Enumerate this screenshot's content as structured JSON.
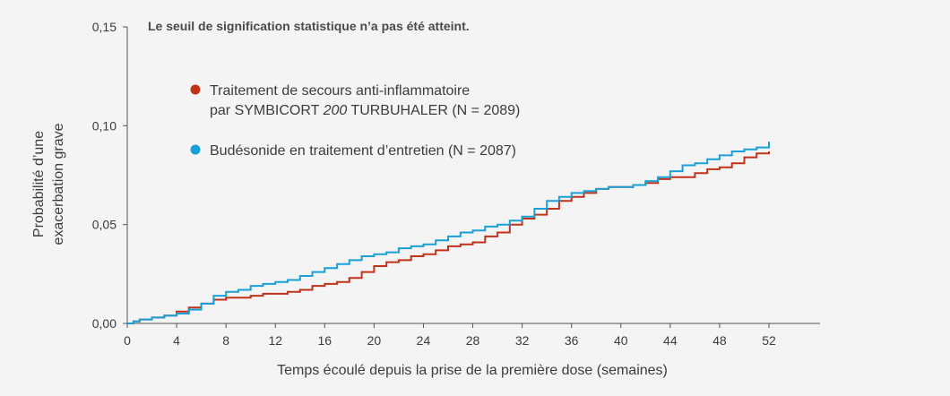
{
  "chart_data": {
    "type": "line",
    "step": true,
    "annotation": "Le seuil de signification statistique n’a pas été atteint.",
    "ylabel": [
      "Probabilité d’une",
      "exacerbation grave"
    ],
    "xlabel": "Temps écoulé depuis la prise de la première dose (semaines)",
    "xlim": [
      0,
      52
    ],
    "ylim": [
      0,
      0.15
    ],
    "xticks": [
      0,
      4,
      8,
      12,
      16,
      20,
      24,
      28,
      32,
      36,
      40,
      44,
      48,
      52
    ],
    "xtick_labels": [
      "0",
      "4",
      "8",
      "12",
      "16",
      "20",
      "24",
      "28",
      "32",
      "36",
      "40",
      "44",
      "48",
      "52"
    ],
    "yticks": [
      0,
      0.05,
      0.1,
      0.15
    ],
    "ytick_labels": [
      "0,00",
      "0,05",
      "0,10",
      "0,15"
    ],
    "grid": false,
    "legend_position": "top-left",
    "series": [
      {
        "name_lines": [
          [
            {
              "t": "Traitement de secours anti-inflammatoire",
              "i": false
            }
          ],
          [
            {
              "t": "par SYMBICORT ",
              "i": false
            },
            {
              "t": "200",
              "i": true
            },
            {
              "t": " TURBUHALER (N = 2089)",
              "i": false
            }
          ]
        ],
        "color": "#c0321a",
        "x": [
          0,
          0.5,
          1,
          2,
          3,
          4,
          5,
          6,
          7,
          8,
          9,
          10,
          11,
          12,
          13,
          14,
          15,
          16,
          17,
          18,
          19,
          20,
          21,
          22,
          23,
          24,
          25,
          26,
          27,
          28,
          29,
          30,
          31,
          32,
          33,
          34,
          35,
          36,
          37,
          38,
          39,
          40,
          41,
          42,
          43,
          44,
          45,
          46,
          47,
          48,
          49,
          50,
          51,
          52
        ],
        "y": [
          0,
          0.001,
          0.002,
          0.003,
          0.004,
          0.006,
          0.008,
          0.01,
          0.012,
          0.013,
          0.013,
          0.014,
          0.015,
          0.015,
          0.016,
          0.017,
          0.019,
          0.02,
          0.021,
          0.023,
          0.026,
          0.029,
          0.031,
          0.032,
          0.034,
          0.035,
          0.037,
          0.039,
          0.04,
          0.041,
          0.044,
          0.046,
          0.05,
          0.053,
          0.055,
          0.058,
          0.062,
          0.064,
          0.066,
          0.068,
          0.069,
          0.069,
          0.07,
          0.071,
          0.073,
          0.074,
          0.074,
          0.076,
          0.078,
          0.079,
          0.081,
          0.084,
          0.086,
          0.087
        ]
      },
      {
        "name_lines": [
          [
            {
              "t": "Budésonide en traitement d’entretien (N = 2087)",
              "i": false
            }
          ]
        ],
        "color": "#1aa0d8",
        "x": [
          0,
          0.5,
          1,
          2,
          3,
          4,
          5,
          6,
          7,
          8,
          9,
          10,
          11,
          12,
          13,
          14,
          15,
          16,
          17,
          18,
          19,
          20,
          21,
          22,
          23,
          24,
          25,
          26,
          27,
          28,
          29,
          30,
          31,
          32,
          33,
          34,
          35,
          36,
          37,
          38,
          39,
          40,
          41,
          42,
          43,
          44,
          45,
          46,
          47,
          48,
          49,
          50,
          51,
          52
        ],
        "y": [
          0,
          0.001,
          0.002,
          0.003,
          0.004,
          0.005,
          0.007,
          0.01,
          0.014,
          0.016,
          0.017,
          0.019,
          0.02,
          0.021,
          0.022,
          0.024,
          0.026,
          0.028,
          0.03,
          0.032,
          0.034,
          0.035,
          0.036,
          0.038,
          0.039,
          0.04,
          0.042,
          0.044,
          0.046,
          0.047,
          0.049,
          0.05,
          0.052,
          0.054,
          0.058,
          0.062,
          0.064,
          0.066,
          0.067,
          0.068,
          0.069,
          0.069,
          0.07,
          0.072,
          0.074,
          0.077,
          0.08,
          0.081,
          0.083,
          0.085,
          0.087,
          0.088,
          0.089,
          0.092
        ]
      }
    ]
  }
}
